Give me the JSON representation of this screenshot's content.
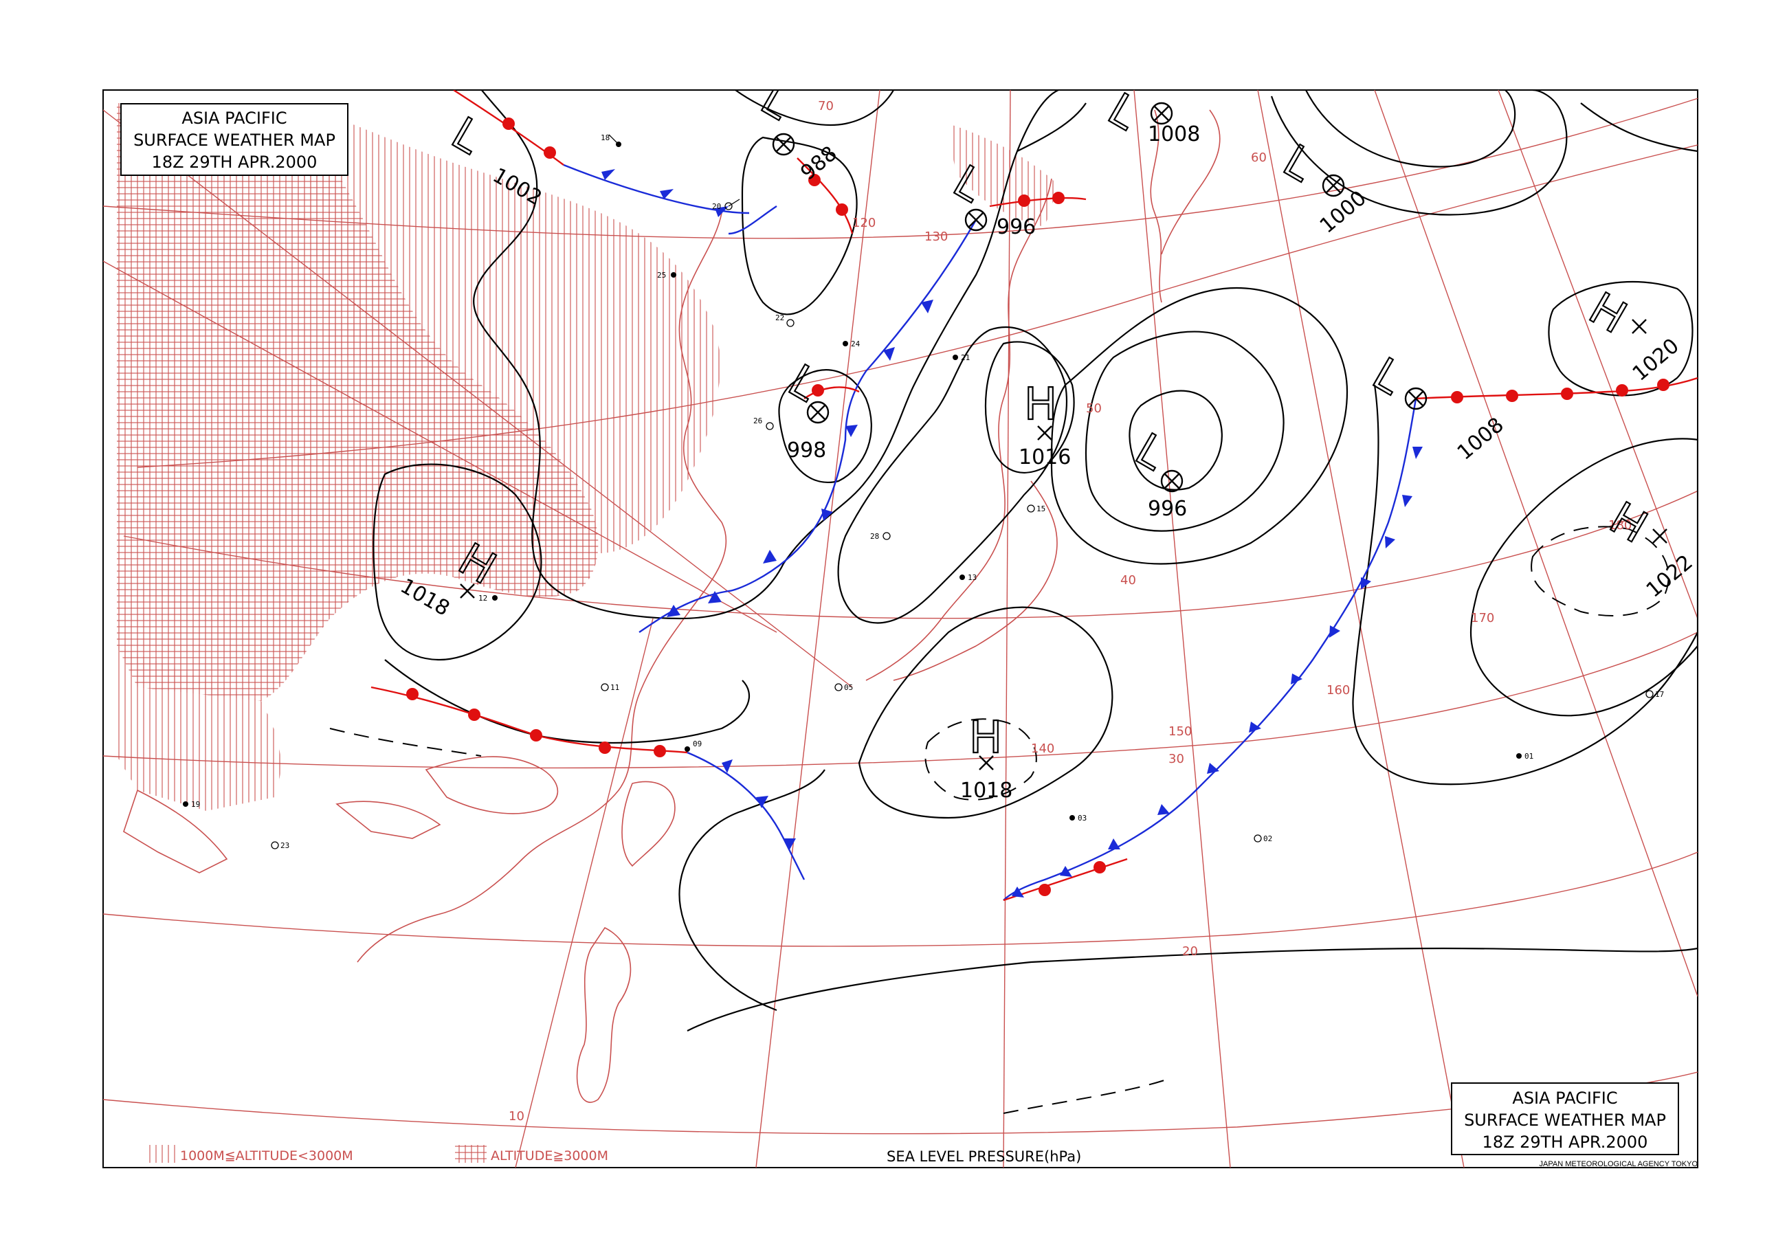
{
  "title": {
    "line1": "ASIA PACIFIC",
    "line2": "SURFACE WEATHER MAP",
    "line3": "18Z 29TH APR.2000"
  },
  "legend": {
    "terrain_low": "1000M≦ALTITUDE<3000M",
    "terrain_high": "ALTITUDE≧3000M",
    "isobar_caption": "SEA LEVEL PRESSURE(hPa)"
  },
  "credit": "JAPAN METEOROLOGICAL AGENCY TOKYO",
  "pressure_centers": [
    {
      "type": "L",
      "value": "1002"
    },
    {
      "type": "L",
      "value": "988"
    },
    {
      "type": "L",
      "value": "996"
    },
    {
      "type": "L",
      "value": "1008"
    },
    {
      "type": "L",
      "value": "1000"
    },
    {
      "type": "L",
      "value": "998"
    },
    {
      "type": "H",
      "value": "1016"
    },
    {
      "type": "L",
      "value": "996"
    },
    {
      "type": "H",
      "value": "1018"
    },
    {
      "type": "H",
      "value": "1018"
    },
    {
      "type": "L",
      "value": "1008"
    },
    {
      "type": "H",
      "value": "1020"
    },
    {
      "type": "H",
      "value": "1022"
    }
  ],
  "graticule_labels": {
    "lat_40": "40",
    "lat_30": "30",
    "lat_20": "20",
    "lat_10": "10",
    "lat_50": "50",
    "lat_60": "60",
    "lat_70": "70",
    "lon_120": "120",
    "lon_130": "130",
    "lon_140": "140",
    "lon_150": "150",
    "lon_160": "160",
    "lon_170": "170",
    "lon_180": "180"
  },
  "station_samples": [
    "18",
    "20",
    "25",
    "22",
    "24",
    "26",
    "21",
    "28",
    "13",
    "15",
    "12",
    "11",
    "09",
    "05",
    "03",
    "02",
    "01",
    "17",
    "19",
    "23"
  ]
}
